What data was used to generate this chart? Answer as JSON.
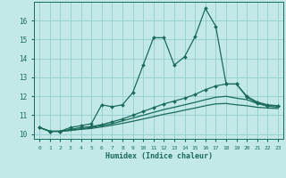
{
  "title": "",
  "xlabel": "Humidex (Indice chaleur)",
  "bg_color": "#c2e8e8",
  "grid_color": "#96cccc",
  "line_color": "#1a6b5a",
  "xlim": [
    -0.5,
    23.5
  ],
  "ylim": [
    9.75,
    17.0
  ],
  "yticks": [
    10,
    11,
    12,
    13,
    14,
    15,
    16
  ],
  "xticks": [
    0,
    1,
    2,
    3,
    4,
    5,
    6,
    7,
    8,
    9,
    10,
    11,
    12,
    13,
    14,
    15,
    16,
    17,
    18,
    19,
    20,
    21,
    22,
    23
  ],
  "series": [
    {
      "x": [
        0,
        1,
        2,
        3,
        4,
        5,
        6,
        7,
        8,
        9,
        10,
        11,
        12,
        13,
        14,
        15,
        16,
        17,
        18,
        19,
        20,
        21,
        22,
        23
      ],
      "y": [
        10.35,
        10.15,
        10.15,
        10.35,
        10.45,
        10.55,
        11.55,
        11.45,
        11.55,
        12.2,
        13.65,
        15.1,
        15.1,
        13.65,
        14.1,
        15.15,
        16.65,
        15.7,
        12.65,
        12.65,
        11.95,
        11.65,
        11.5,
        11.5
      ],
      "marker": "D",
      "markersize": 2.0,
      "linewidth": 0.9
    },
    {
      "x": [
        0,
        1,
        2,
        3,
        4,
        5,
        6,
        7,
        8,
        9,
        10,
        11,
        12,
        13,
        14,
        15,
        16,
        17,
        18,
        19,
        20,
        21,
        22,
        23
      ],
      "y": [
        10.35,
        10.15,
        10.15,
        10.25,
        10.35,
        10.4,
        10.5,
        10.65,
        10.8,
        11.0,
        11.2,
        11.4,
        11.6,
        11.75,
        11.9,
        12.1,
        12.35,
        12.55,
        12.65,
        12.65,
        12.0,
        11.7,
        11.55,
        11.5
      ],
      "marker": "D",
      "markersize": 2.0,
      "linewidth": 0.9
    },
    {
      "x": [
        0,
        1,
        2,
        3,
        4,
        5,
        6,
        7,
        8,
        9,
        10,
        11,
        12,
        13,
        14,
        15,
        16,
        17,
        18,
        19,
        20,
        21,
        22,
        23
      ],
      "y": [
        10.35,
        10.15,
        10.15,
        10.2,
        10.28,
        10.35,
        10.45,
        10.55,
        10.7,
        10.85,
        11.0,
        11.15,
        11.3,
        11.42,
        11.55,
        11.68,
        11.82,
        11.95,
        12.0,
        11.9,
        11.82,
        11.62,
        11.48,
        11.42
      ],
      "marker": null,
      "markersize": 0,
      "linewidth": 0.9
    },
    {
      "x": [
        0,
        1,
        2,
        3,
        4,
        5,
        6,
        7,
        8,
        9,
        10,
        11,
        12,
        13,
        14,
        15,
        16,
        17,
        18,
        19,
        20,
        21,
        22,
        23
      ],
      "y": [
        10.35,
        10.15,
        10.15,
        10.2,
        10.25,
        10.3,
        10.38,
        10.47,
        10.57,
        10.68,
        10.8,
        10.92,
        11.05,
        11.15,
        11.27,
        11.38,
        11.5,
        11.6,
        11.62,
        11.55,
        11.5,
        11.42,
        11.38,
        11.35
      ],
      "marker": null,
      "markersize": 0,
      "linewidth": 0.9
    }
  ]
}
